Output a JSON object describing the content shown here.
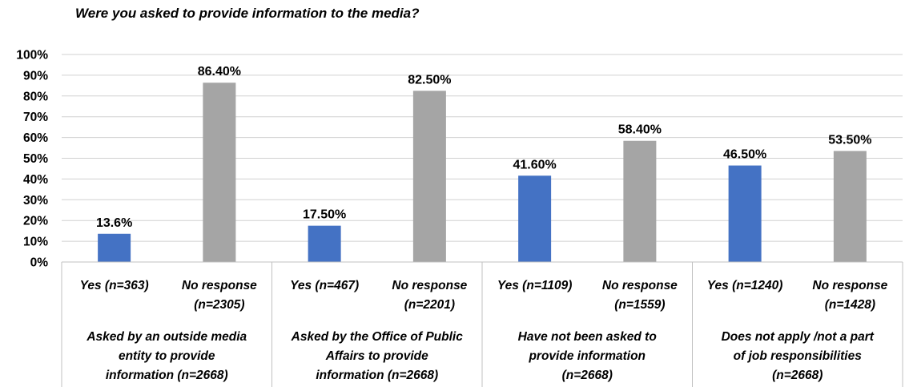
{
  "chart_data": {
    "type": "bar",
    "title": "Were you asked to provide information to the media?",
    "ylim": [
      0,
      100
    ],
    "yticks": [
      "0%",
      "10%",
      "20%",
      "30%",
      "40%",
      "50%",
      "60%",
      "70%",
      "80%",
      "90%",
      "100%"
    ],
    "grid": true,
    "colors": {
      "yes": "#4472c4",
      "no": "#a5a5a5"
    },
    "groups": [
      {
        "label": "Asked by an outside media entity to provide information (n=2668)",
        "label_lines": [
          "Asked by an outside media",
          "entity to provide",
          "information (n=2668)"
        ],
        "bars": [
          {
            "category_lines": [
              "Yes (n=363)"
            ],
            "value": 13.6,
            "label": "13.6%",
            "kind": "yes"
          },
          {
            "category_lines": [
              "No response",
              "(n=2305)"
            ],
            "value": 86.4,
            "label": "86.40%",
            "kind": "no"
          }
        ]
      },
      {
        "label": "Asked by the Office of Public Affairs to provide information (n=2668)",
        "label_lines": [
          "Asked by the Office of Public",
          "Affairs to provide",
          "information (n=2668)"
        ],
        "bars": [
          {
            "category_lines": [
              "Yes (n=467)"
            ],
            "value": 17.5,
            "label": "17.50%",
            "kind": "yes"
          },
          {
            "category_lines": [
              "No response",
              "(n=2201)"
            ],
            "value": 82.5,
            "label": "82.50%",
            "kind": "no"
          }
        ]
      },
      {
        "label": "Have not been asked to provide information (n=2668)",
        "label_lines": [
          "Have not been asked to",
          "provide information",
          "(n=2668)"
        ],
        "bars": [
          {
            "category_lines": [
              "Yes (n=1109)"
            ],
            "value": 41.6,
            "label": "41.60%",
            "kind": "yes"
          },
          {
            "category_lines": [
              "No response",
              "(n=1559)"
            ],
            "value": 58.4,
            "label": "58.40%",
            "kind": "no"
          }
        ]
      },
      {
        "label": "Does not apply /not a part of job responsibilities (n=2668)",
        "label_lines": [
          "Does not apply /not a part",
          "of job responsibilities",
          "(n=2668)"
        ],
        "bars": [
          {
            "category_lines": [
              "Yes (n=1240)"
            ],
            "value": 46.5,
            "label": "46.50%",
            "kind": "yes"
          },
          {
            "category_lines": [
              "No response",
              "(n=1428)"
            ],
            "value": 53.5,
            "label": "53.50%",
            "kind": "no"
          }
        ]
      }
    ]
  }
}
